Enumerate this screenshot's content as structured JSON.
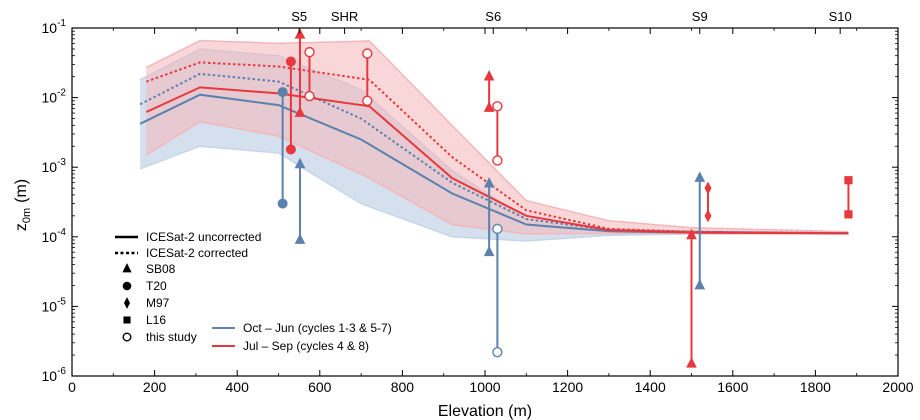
{
  "chart_data": {
    "type": "line",
    "title": "",
    "xlabel": "Elevation (m)",
    "ylabel_main": "z",
    "ylabel_sub": "0m",
    "ylabel_unit": "(m)",
    "xlim": [
      0,
      2000
    ],
    "ylim_exp": [
      -6,
      -1
    ],
    "yscale": "log",
    "grid": false,
    "x_ticks": [
      0,
      200,
      400,
      600,
      800,
      1000,
      1200,
      1400,
      1600,
      1800,
      2000
    ],
    "y_ticks": [
      {
        "exp": -6,
        "base": "10",
        "sup": "-6"
      },
      {
        "exp": -5,
        "base": "10",
        "sup": "-5"
      },
      {
        "exp": -4,
        "base": "10",
        "sup": "-4"
      },
      {
        "exp": -3,
        "base": "10",
        "sup": "-3"
      },
      {
        "exp": -2,
        "base": "10",
        "sup": "-2"
      },
      {
        "exp": -1,
        "base": "10",
        "sup": "-1"
      }
    ],
    "stations": [
      {
        "name": "S5",
        "x": 550
      },
      {
        "name": "SHR",
        "x": 660
      },
      {
        "name": "S6",
        "x": 1020
      },
      {
        "name": "S9",
        "x": 1520
      },
      {
        "name": "S10",
        "x": 1860
      }
    ],
    "colors": {
      "blue": "#5b82ad",
      "red": "#e8383d",
      "blue_fill": "#c5d6e8",
      "red_fill": "#f4b6b9"
    },
    "bands": [
      {
        "series": "Oct – Jun",
        "color": "blue",
        "x": [
          165,
          310,
          500,
          700,
          920,
          1100,
          1300,
          1500,
          1880
        ],
        "upper": [
          0.018,
          0.05,
          0.04,
          0.013,
          0.0009,
          0.00018,
          0.00013,
          0.00012,
          0.000115
        ],
        "lower": [
          0.00095,
          0.002,
          0.0016,
          0.0003,
          0.0001,
          8.7e-05,
          0.000105,
          0.00011,
          0.00011
        ]
      },
      {
        "series": "Jul – Sep",
        "color": "red",
        "x": [
          180,
          310,
          500,
          720,
          920,
          1100,
          1300,
          1500,
          1880
        ],
        "upper": [
          0.027,
          0.066,
          0.06,
          0.065,
          0.004,
          0.00033,
          0.00017,
          0.000135,
          0.000118
        ],
        "lower": [
          0.0015,
          0.0045,
          0.0028,
          0.0007,
          0.00015,
          0.00011,
          0.000112,
          0.000112,
          0.00011
        ]
      }
    ],
    "series": [
      {
        "name": "Oct – Jun",
        "color": "blue",
        "style": "solid",
        "x": [
          165,
          310,
          500,
          700,
          920,
          1100,
          1300,
          1500,
          1880
        ],
        "y": [
          0.0042,
          0.011,
          0.0078,
          0.0025,
          0.00042,
          0.00015,
          0.00012,
          0.000115,
          0.000113
        ]
      },
      {
        "name": "Oct – Jun",
        "color": "blue",
        "style": "dotted",
        "x": [
          165,
          310,
          500,
          700,
          920,
          1100,
          1300,
          1500,
          1880
        ],
        "y": [
          0.008,
          0.022,
          0.017,
          0.005,
          0.0006,
          0.00018,
          0.000125,
          0.000118,
          0.000113
        ]
      },
      {
        "name": "Jul – Sep",
        "color": "red",
        "style": "solid",
        "x": [
          180,
          310,
          500,
          720,
          920,
          1100,
          1300,
          1500,
          1880
        ],
        "y": [
          0.0062,
          0.014,
          0.0115,
          0.0075,
          0.0007,
          0.0002,
          0.000125,
          0.000115,
          0.000112
        ]
      },
      {
        "name": "Jul – Sep",
        "color": "red",
        "style": "dotted",
        "x": [
          180,
          310,
          500,
          720,
          920,
          1100,
          1300,
          1500,
          1880
        ],
        "y": [
          0.017,
          0.032,
          0.028,
          0.018,
          0.0014,
          0.00024,
          0.00013,
          0.000118,
          0.000112
        ]
      }
    ],
    "observations": [
      {
        "x": 510,
        "y_top": 0.012,
        "y_bottom": 0.0003,
        "color": "blue",
        "marker": "circle",
        "filled": true
      },
      {
        "x": 552,
        "y_top": 0.0011,
        "y_bottom": 9e-05,
        "color": "blue",
        "marker": "triangle",
        "filled": true
      },
      {
        "x": 1010,
        "y_top": 0.00058,
        "y_bottom": 6e-05,
        "color": "blue",
        "marker": "triangle",
        "filled": true
      },
      {
        "x": 1030,
        "y_top": 0.00013,
        "y_bottom": 2.2e-06,
        "color": "blue",
        "marker": "circle",
        "filled": false
      },
      {
        "x": 1520,
        "y_top": 0.0007,
        "y_bottom": 2e-05,
        "color": "blue",
        "marker": "triangle",
        "filled": true
      },
      {
        "x": 530,
        "y_top": 0.033,
        "y_bottom": 0.0018,
        "color": "red",
        "marker": "circle",
        "filled": true
      },
      {
        "x": 552,
        "y_top": 0.08,
        "y_bottom": 0.006,
        "color": "red",
        "marker": "triangle",
        "filled": true
      },
      {
        "x": 575,
        "y_top": 0.045,
        "y_bottom": 0.0105,
        "color": "red",
        "marker": "circle",
        "filled": false
      },
      {
        "x": 715,
        "y_top": 0.043,
        "y_bottom": 0.009,
        "color": "red",
        "marker": "circle",
        "filled": false
      },
      {
        "x": 1010,
        "y_top": 0.02,
        "y_bottom": 0.0071,
        "color": "red",
        "marker": "triangle",
        "filled": true
      },
      {
        "x": 1030,
        "y_top": 0.0075,
        "y_bottom": 0.00125,
        "color": "red",
        "marker": "circle",
        "filled": false
      },
      {
        "x": 1500,
        "y_top": 0.000105,
        "y_bottom": 1.5e-06,
        "color": "red",
        "marker": "triangle",
        "filled": true
      },
      {
        "x": 1540,
        "y_top": 0.0005,
        "y_bottom": 0.0002,
        "color": "red",
        "marker": "diamond",
        "filled": true
      },
      {
        "x": 1880,
        "y_top": 0.00065,
        "y_bottom": 0.00021,
        "color": "red",
        "marker": "square",
        "filled": true
      }
    ],
    "legend": {
      "placement": "bottom-left",
      "line_styles": [
        {
          "label": "ICESat-2 uncorrected",
          "style": "solid"
        },
        {
          "label": "ICESat-2 corrected",
          "style": "dotted"
        }
      ],
      "markers": [
        {
          "label": "SB08",
          "marker": "triangle",
          "filled": true
        },
        {
          "label": "T20",
          "marker": "circle",
          "filled": true
        },
        {
          "label": "M97",
          "marker": "diamond",
          "filled": true
        },
        {
          "label": "L16",
          "marker": "square",
          "filled": true
        },
        {
          "label": "this study",
          "marker": "circle",
          "filled": false
        }
      ],
      "seasons": [
        {
          "label": "Oct – Jun (cycles 1-3 & 5-7)",
          "color": "blue"
        },
        {
          "label": "Jul – Sep (cycles 4 & 8)",
          "color": "red"
        }
      ]
    }
  }
}
